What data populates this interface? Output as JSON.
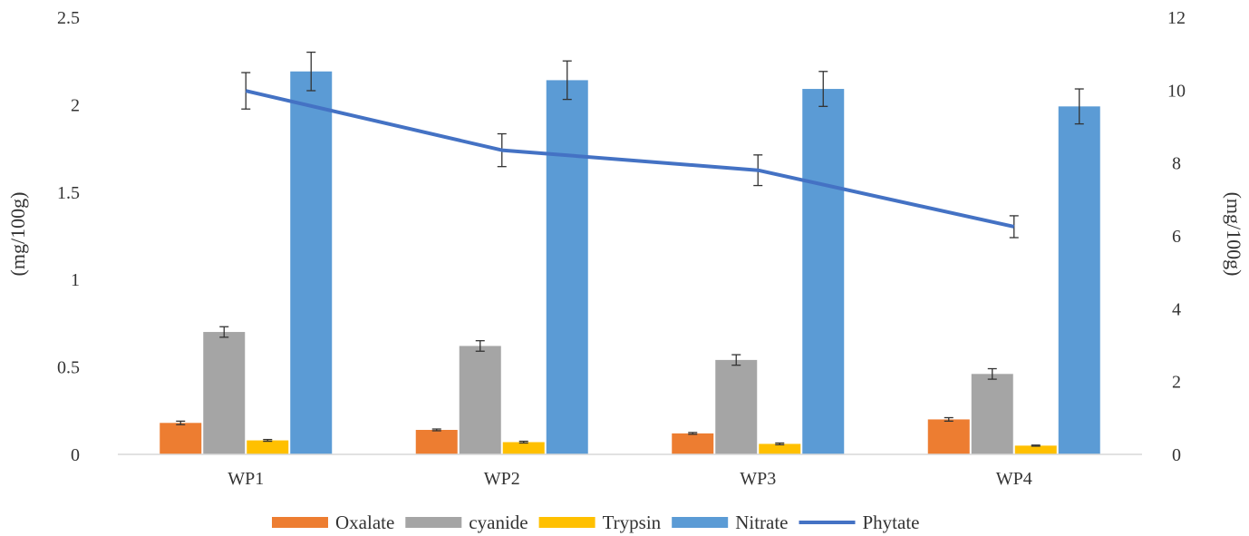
{
  "chart_data": {
    "type": "bar",
    "categories": [
      "WP1",
      "WP2",
      "WP3",
      "WP4"
    ],
    "series": [
      {
        "name": "Oxalate",
        "axis": "left",
        "type": "bar",
        "color": "#ED7D31",
        "values": [
          0.18,
          0.14,
          0.12,
          0.2
        ],
        "errors": [
          0.01,
          0.005,
          0.005,
          0.01
        ]
      },
      {
        "name": "cyanide",
        "axis": "left",
        "type": "bar",
        "color": "#A5A5A5",
        "values": [
          0.7,
          0.62,
          0.54,
          0.46
        ],
        "errors": [
          0.03,
          0.03,
          0.03,
          0.03
        ]
      },
      {
        "name": "Trypsin",
        "axis": "left",
        "type": "bar",
        "color": "#FFC000",
        "values": [
          0.08,
          0.07,
          0.06,
          0.05
        ],
        "errors": [
          0.005,
          0.005,
          0.005,
          0.003
        ]
      },
      {
        "name": "Nitrate",
        "axis": "left",
        "type": "bar",
        "color": "#5B9BD5",
        "values": [
          2.19,
          2.14,
          2.09,
          1.99
        ],
        "errors": [
          0.11,
          0.11,
          0.1,
          0.1
        ]
      },
      {
        "name": "Phytate",
        "axis": "right",
        "type": "line",
        "color": "#4472C4",
        "values": [
          9.98,
          8.35,
          7.8,
          6.25
        ],
        "errors": [
          0.5,
          0.45,
          0.42,
          0.3
        ]
      }
    ],
    "y_left": {
      "label": "(mg/100g)",
      "ylim": [
        0,
        2.5
      ],
      "ticks": [
        "0",
        "0.5",
        "1",
        "1.5",
        "2",
        "2.5"
      ],
      "tick_values": [
        0,
        0.5,
        1,
        1.5,
        2,
        2.5
      ]
    },
    "y_right": {
      "label": "(mg/100g)",
      "ylim": [
        0,
        12
      ],
      "ticks": [
        "0",
        "2",
        "4",
        "6",
        "8",
        "10",
        "12"
      ],
      "tick_values": [
        0,
        2,
        4,
        6,
        8,
        10,
        12
      ]
    },
    "grid": false,
    "legend_position": "bottom"
  }
}
